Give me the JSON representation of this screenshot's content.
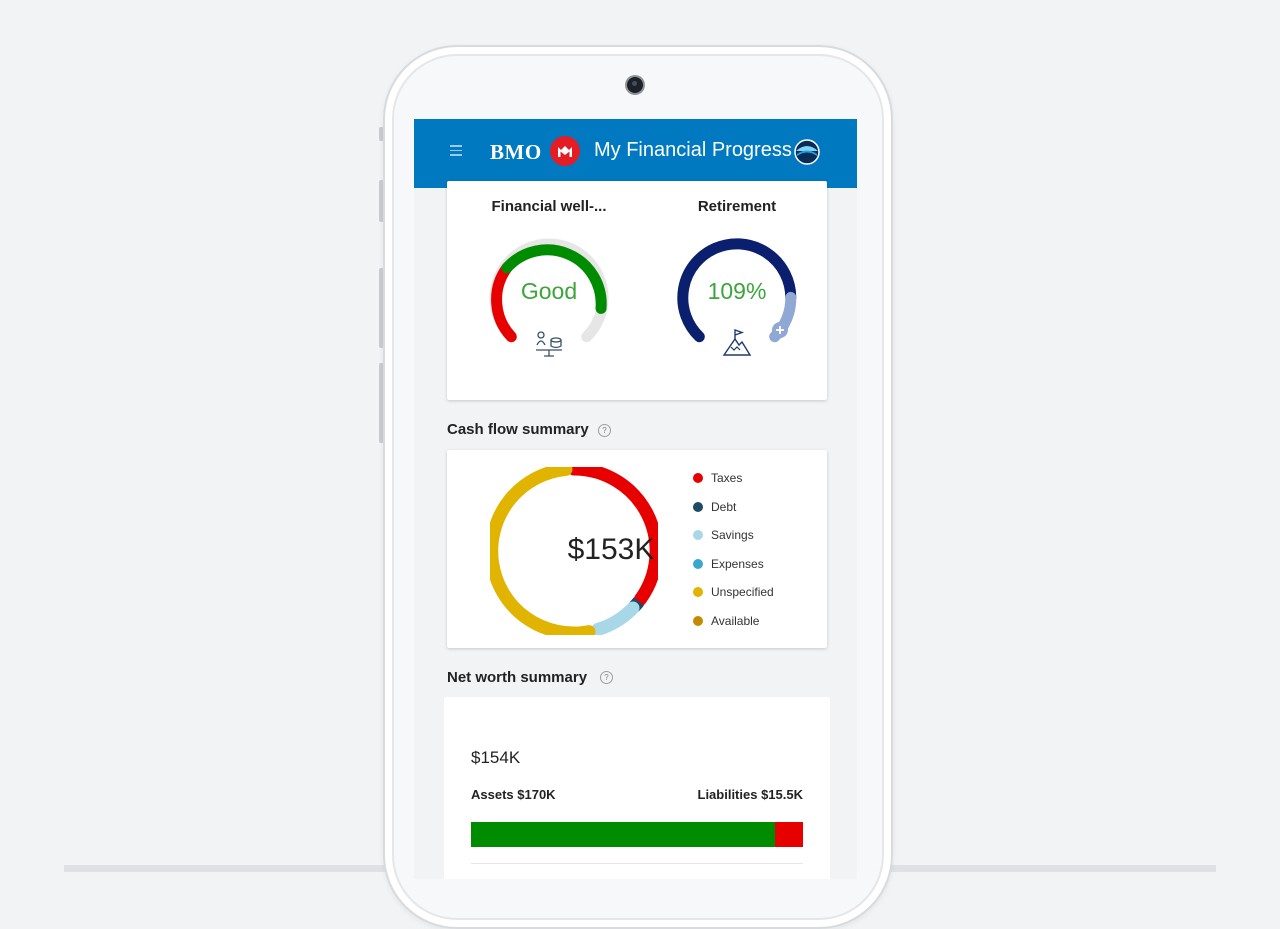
{
  "header": {
    "menu_icon": "hamburger-icon",
    "brand": "BMO",
    "title": "My Financial Progress",
    "brand_color": "#0079c1",
    "roundel_color": "#e41d24"
  },
  "progress": {
    "wellbeing": {
      "title": "Financial well-...",
      "status": "Good",
      "icon": "person-coins-balance-icon",
      "status_color": "#3ca53c"
    },
    "retirement": {
      "title": "Retirement",
      "percent": "109%",
      "icon": "mountain-flag-icon",
      "percent_color": "#3ca53c"
    }
  },
  "cash_flow": {
    "title": "Cash flow summary",
    "help": "?",
    "total": "$153K",
    "legend": [
      {
        "label": "Taxes",
        "color": "#e60000"
      },
      {
        "label": "Debt",
        "color": "#1e4a63"
      },
      {
        "label": "Savings",
        "color": "#a8d8e8"
      },
      {
        "label": "Expenses",
        "color": "#3aa6d0"
      },
      {
        "label": "Unspecified",
        "color": "#e0b400"
      },
      {
        "label": "Available",
        "color": "#c48a00"
      }
    ]
  },
  "net_worth": {
    "title": "Net worth summary",
    "help": "?",
    "total": "$154K",
    "assets_label": "Assets $170K",
    "liabilities_label": "Liabilities $15.5K",
    "assets_value": 170,
    "liabilities_value": 15.5,
    "assets_color": "#008c00",
    "liabilities_color": "#e60000"
  }
}
